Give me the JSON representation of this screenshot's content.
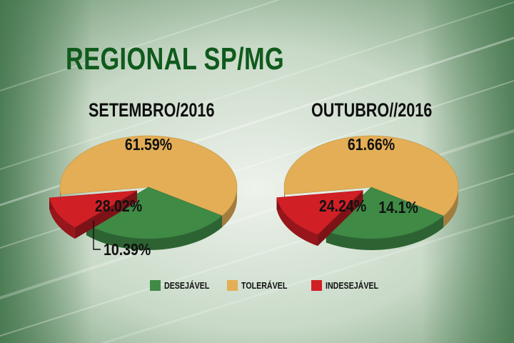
{
  "title": "REGIONAL SP/MG",
  "colors": {
    "desejavel": "#3f8a45",
    "toleravel": "#e3ae55",
    "indesejavel": "#d11f26"
  },
  "legend": [
    {
      "label": "DESEJÁVEL",
      "color": "#3f8a45"
    },
    {
      "label": "TOLERÁVEL",
      "color": "#e3ae55"
    },
    {
      "label": "INDESEJÁVEL",
      "color": "#d11f26"
    }
  ],
  "chart_data": [
    {
      "type": "pie",
      "title": "SETEMBRO/2016",
      "slices": [
        {
          "name": "TOLERÁVEL",
          "value": 61.59,
          "label": "61.59%"
        },
        {
          "name": "DESEJÁVEL",
          "value": 28.02,
          "label": "28.02%"
        },
        {
          "name": "INDESEJÁVEL",
          "value": 10.39,
          "label": "10.39%"
        }
      ]
    },
    {
      "type": "pie",
      "title": "OUTUBRO//2016",
      "slices": [
        {
          "name": "TOLERÁVEL",
          "value": 61.66,
          "label": "61.66%"
        },
        {
          "name": "DESEJÁVEL",
          "value": 24.24,
          "label": "24.24%"
        },
        {
          "name": "INDESEJÁVEL",
          "value": 14.1,
          "label": "14.1%"
        }
      ]
    }
  ]
}
